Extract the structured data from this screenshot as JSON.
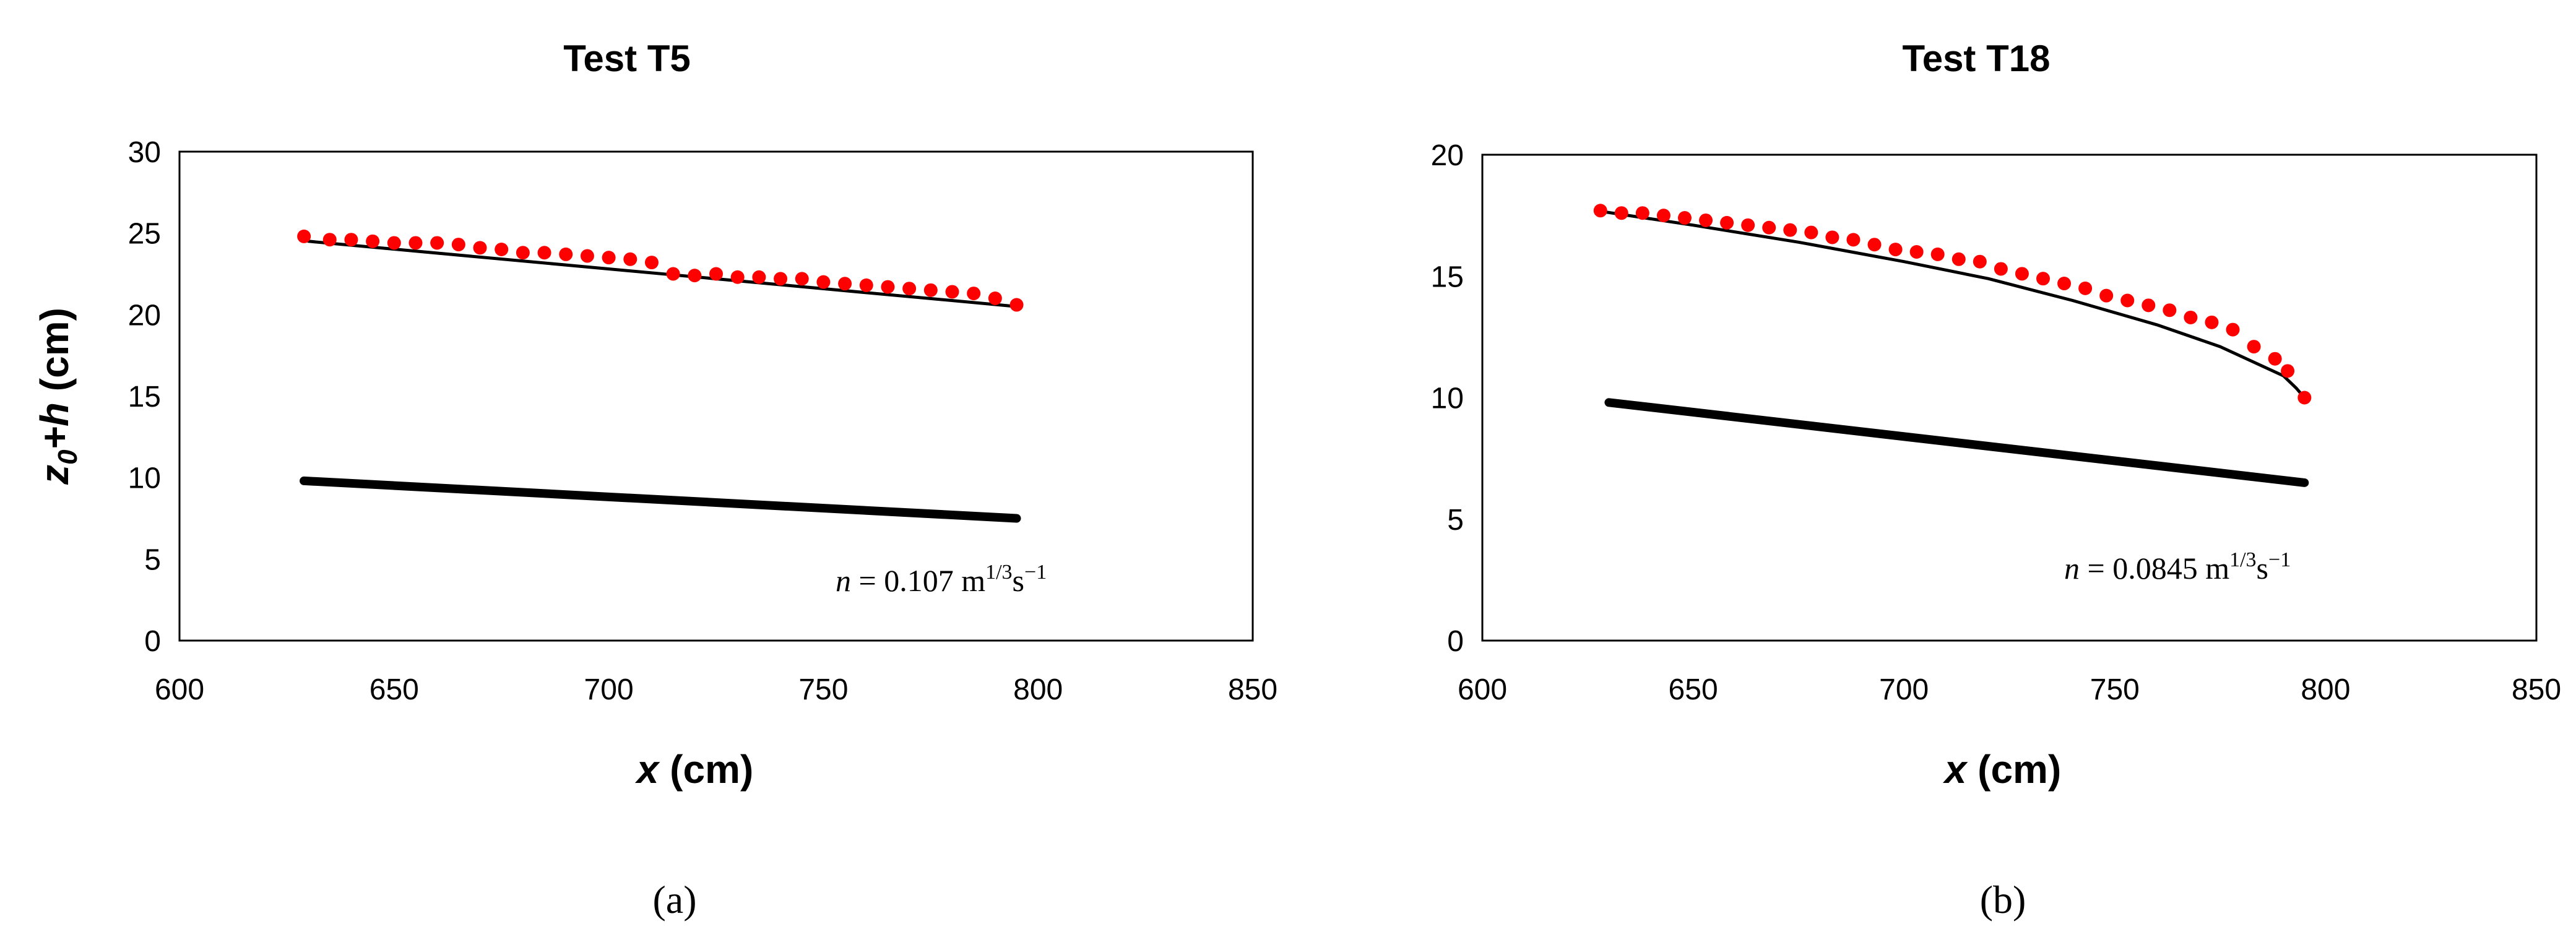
{
  "chart_data": [
    {
      "type": "line",
      "title": "Test T5",
      "xlabel_main": "x",
      "xlabel_unit": " (cm)",
      "ylabel_sub": "0",
      "ylabel_mid": "+h",
      "ylabel_unit": " (cm)",
      "xlim": [
        600,
        850
      ],
      "ylim": [
        0,
        30
      ],
      "xticks": [
        600,
        650,
        700,
        750,
        800,
        850
      ],
      "yticks": [
        0,
        5,
        10,
        15,
        20,
        25,
        30
      ],
      "grid": false,
      "annotation": {
        "symbol": "n",
        "value": " = 0.107 m",
        "sup": "1/3",
        "rest": "s",
        "sup2": "−1"
      },
      "panel_label": "(a)",
      "series": [
        {
          "kind": "line",
          "color": "#000000",
          "x": [
            630,
            795
          ],
          "y": [
            24.5,
            20.5
          ]
        },
        {
          "kind": "points",
          "color": "#ff0000",
          "x": [
            629,
            635,
            640,
            645,
            650,
            655,
            660,
            665,
            670,
            675,
            680,
            685,
            690,
            695,
            700,
            705,
            710,
            715,
            720,
            725,
            730,
            735,
            740,
            745,
            750,
            755,
            760,
            765,
            770,
            775,
            780,
            785,
            790,
            795
          ],
          "y": [
            24.8,
            24.6,
            24.6,
            24.5,
            24.4,
            24.4,
            24.4,
            24.3,
            24.1,
            24.0,
            23.8,
            23.8,
            23.7,
            23.6,
            23.5,
            23.4,
            23.2,
            22.5,
            22.4,
            22.5,
            22.3,
            22.3,
            22.2,
            22.2,
            22.0,
            21.9,
            21.8,
            21.7,
            21.6,
            21.5,
            21.4,
            21.3,
            21.0,
            20.6
          ]
        },
        {
          "kind": "bed",
          "color": "#000000",
          "x": [
            629,
            795
          ],
          "y": [
            9.8,
            7.5
          ]
        }
      ]
    },
    {
      "type": "line",
      "title": "Test T18",
      "xlabel_main": "x",
      "xlabel_unit": " (cm)",
      "xlim": [
        600,
        850
      ],
      "ylim": [
        0,
        20
      ],
      "xticks": [
        600,
        650,
        700,
        750,
        800,
        850
      ],
      "yticks": [
        0,
        5,
        10,
        15,
        20
      ],
      "grid": false,
      "annotation": {
        "symbol": "n",
        "value": " = 0.0845 m",
        "sup": "1/3",
        "rest": "s",
        "sup2": "−1"
      },
      "panel_label": "(b)",
      "series": [
        {
          "kind": "line",
          "color": "#000000",
          "x": [
            627,
            650,
            675,
            700,
            720,
            740,
            760,
            775,
            785,
            790,
            793,
            795
          ],
          "y": [
            17.7,
            17.1,
            16.4,
            15.6,
            14.9,
            14.0,
            13.0,
            12.1,
            11.3,
            10.9,
            10.4,
            10.0
          ]
        },
        {
          "kind": "points",
          "color": "#ff0000",
          "x": [
            628,
            633,
            638,
            643,
            648,
            653,
            658,
            663,
            668,
            673,
            678,
            683,
            688,
            693,
            698,
            703,
            708,
            713,
            718,
            723,
            728,
            733,
            738,
            743,
            748,
            753,
            758,
            763,
            768,
            773,
            778,
            783,
            788,
            791,
            795
          ],
          "y": [
            17.7,
            17.6,
            17.6,
            17.5,
            17.4,
            17.3,
            17.2,
            17.1,
            17.0,
            16.9,
            16.8,
            16.6,
            16.5,
            16.3,
            16.1,
            16.0,
            15.9,
            15.7,
            15.6,
            15.3,
            15.1,
            14.9,
            14.7,
            14.5,
            14.2,
            14.0,
            13.8,
            13.6,
            13.3,
            13.1,
            12.8,
            12.1,
            11.6,
            11.1,
            10.0
          ]
        },
        {
          "kind": "bed",
          "color": "#000000",
          "x": [
            630,
            795
          ],
          "y": [
            9.8,
            6.5
          ]
        }
      ]
    }
  ]
}
